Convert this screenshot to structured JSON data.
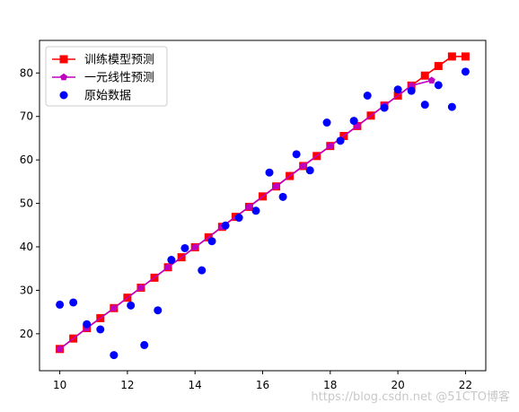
{
  "chart_data": {
    "type": "line",
    "title": "",
    "xlabel": "",
    "ylabel": "",
    "xlim": [
      9.4,
      22.6
    ],
    "ylim": [
      11.5,
      87.5
    ],
    "xticks": [
      10,
      12,
      14,
      16,
      18,
      20,
      22
    ],
    "yticks": [
      20,
      30,
      40,
      50,
      60,
      70,
      80
    ],
    "grid": false,
    "legend_position": "top-left",
    "series": [
      {
        "name": "训练模型预测",
        "kind": "line",
        "marker": "square",
        "line_color": "#ff0000",
        "marker_color": "#ff0000",
        "x": [
          10.0,
          10.4,
          10.8,
          11.2,
          11.6,
          12.0,
          12.4,
          12.8,
          13.2,
          13.6,
          14.0,
          14.4,
          14.8,
          15.2,
          15.6,
          16.0,
          16.4,
          16.8,
          17.2,
          17.6,
          18.0,
          18.4,
          18.8,
          19.2,
          19.6,
          20.0,
          20.4,
          20.8,
          21.2,
          21.6,
          22.0
        ],
        "y": [
          16.5,
          18.9,
          21.3,
          23.6,
          25.9,
          28.3,
          30.6,
          32.9,
          35.3,
          37.6,
          39.9,
          42.2,
          44.6,
          46.9,
          49.2,
          51.6,
          53.9,
          56.3,
          58.6,
          60.9,
          63.2,
          65.5,
          67.8,
          70.2,
          72.5,
          74.8,
          77.1,
          79.4,
          81.6,
          83.8,
          83.8
        ]
      },
      {
        "name": "一元线性预测",
        "kind": "line",
        "marker": "pentagon",
        "line_color": "#c000c0",
        "marker_color": "#c000c0",
        "x": [
          10.0,
          10.8,
          11.6,
          12.4,
          13.2,
          14.0,
          14.8,
          15.6,
          16.4,
          17.2,
          18.0,
          18.8,
          19.6,
          20.4,
          21.0
        ],
        "y": [
          16.5,
          21.3,
          25.9,
          30.6,
          35.3,
          39.9,
          44.6,
          49.2,
          53.9,
          58.6,
          63.2,
          67.8,
          72.5,
          77.1,
          78.3
        ]
      },
      {
        "name": "原始数据",
        "kind": "scatter",
        "marker": "circle",
        "marker_color": "#0000ff",
        "x": [
          10.0,
          10.4,
          10.8,
          11.2,
          11.6,
          12.1,
          12.5,
          12.9,
          13.3,
          13.7,
          14.2,
          14.5,
          14.9,
          15.3,
          15.8,
          16.2,
          16.6,
          17.0,
          17.4,
          17.9,
          18.3,
          18.7,
          19.1,
          19.6,
          20.0,
          20.4,
          20.8,
          21.2,
          21.6,
          22.0
        ],
        "y": [
          26.7,
          27.2,
          22.2,
          21.0,
          15.1,
          26.5,
          17.4,
          25.4,
          37.0,
          39.7,
          34.6,
          41.3,
          44.9,
          46.7,
          48.3,
          57.1,
          51.5,
          61.3,
          57.6,
          68.6,
          64.4,
          69.0,
          74.8,
          72.0,
          76.2,
          75.9,
          72.7,
          77.2,
          72.2,
          80.3
        ]
      }
    ]
  },
  "watermark": "https://blog.csdn.net @51CTO博客"
}
